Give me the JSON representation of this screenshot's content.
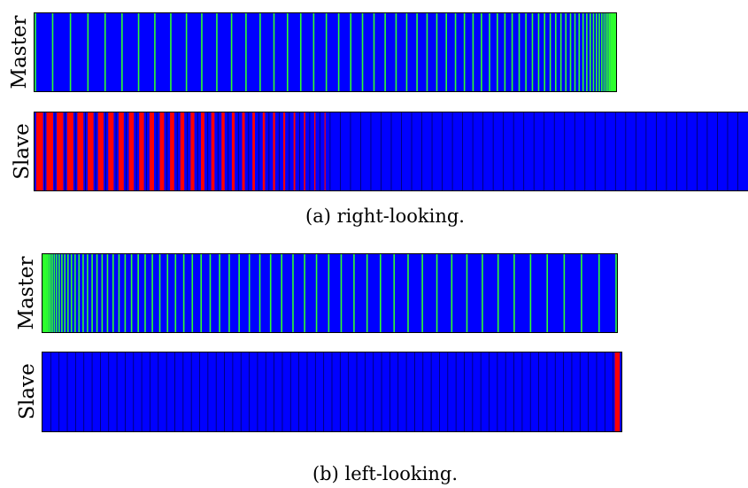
{
  "colors": {
    "blue": "#0000ff",
    "green": "#2dff2d",
    "red": "#ff0000",
    "separator": "#000060"
  },
  "panels": [
    {
      "id": "a",
      "caption": "(a) right-looking.",
      "master": {
        "label": "Master",
        "segments": 70,
        "green_end": "right"
      },
      "slave": {
        "label": "Slave",
        "segments": 70,
        "red_count": 29,
        "red_side": "left"
      }
    },
    {
      "id": "b",
      "caption": "(b) left-looking.",
      "master": {
        "label": "Master",
        "segments": 70,
        "green_end": "left"
      },
      "slave": {
        "label": "Slave",
        "segments": 70,
        "red_count": 1,
        "red_side": "right"
      }
    }
  ]
}
